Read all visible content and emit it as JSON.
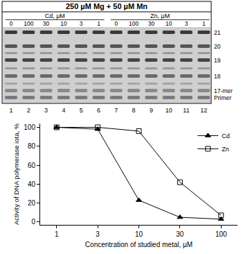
{
  "gel": {
    "header": "250 µM Mg + 50 µM Mn",
    "groups": [
      {
        "label": "Cd, µM",
        "lanes": [
          "0",
          "100",
          "30",
          "10",
          "3",
          "1"
        ]
      },
      {
        "label": "Zn, µM",
        "lanes": [
          "0",
          "100",
          "30",
          "10",
          "3",
          "1"
        ]
      }
    ],
    "band_labels": [
      "21",
      "20",
      "19",
      "18",
      "17-mer",
      "Primer"
    ],
    "lane_numbers": [
      "1",
      "2",
      "3",
      "4",
      "5",
      "6",
      "7",
      "8",
      "9",
      "10",
      "11",
      "12"
    ]
  },
  "chart_data": {
    "type": "line",
    "x_label": "Concentration of studied metal, µM",
    "y_label": "Activity of DNA polymerase iota, %",
    "categories": [
      "1",
      "3",
      "10",
      "30",
      "100"
    ],
    "series": [
      {
        "name": "Cd",
        "color": "#000000",
        "marker": "triangle-up",
        "values": [
          100,
          98,
          23,
          5,
          3
        ]
      },
      {
        "name": "Zn",
        "color": "#000000",
        "marker": "square-open",
        "values": [
          100,
          100,
          96,
          42,
          7
        ]
      }
    ],
    "ylim": [
      -3,
      104
    ],
    "yticks": [
      0,
      20,
      40,
      60,
      80,
      100
    ],
    "legend": "upper right",
    "grid": false
  }
}
